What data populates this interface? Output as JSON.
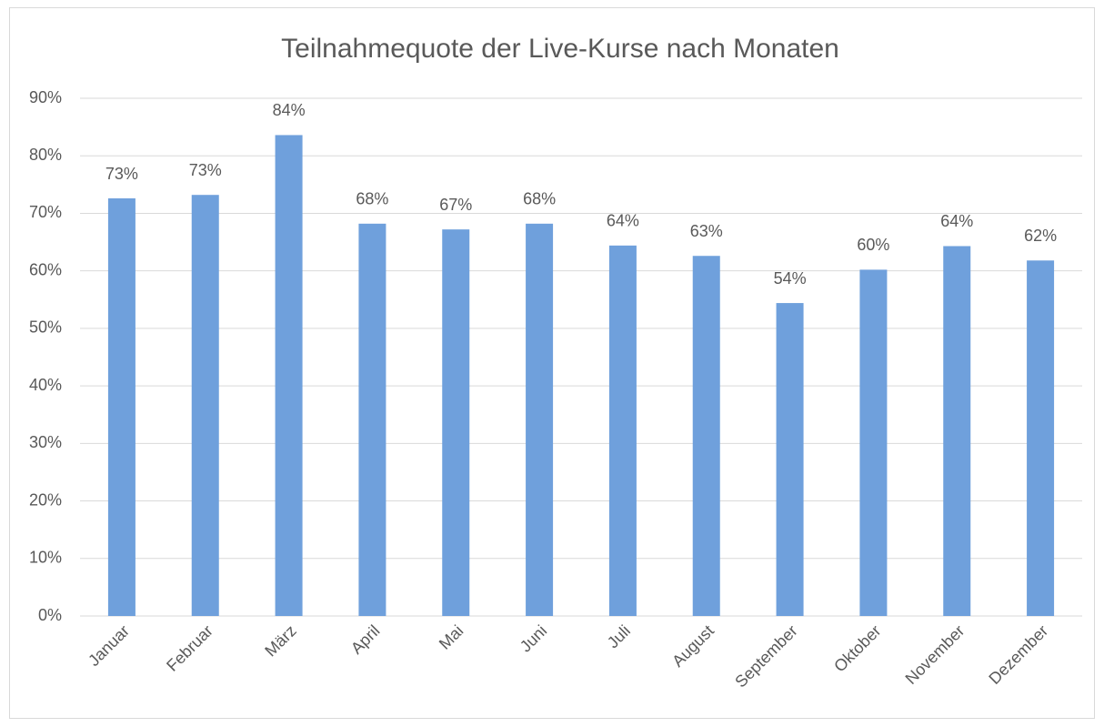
{
  "chart_data": {
    "type": "bar",
    "title": "Teilnahmequote der Live-Kurse nach Monaten",
    "categories": [
      "Januar",
      "Februar",
      "März",
      "April",
      "Mai",
      "Juni",
      "Juli",
      "August",
      "September",
      "Oktober",
      "November",
      "Dezember"
    ],
    "values": [
      72.6,
      73.2,
      83.6,
      68.2,
      67.2,
      68.2,
      64.4,
      62.6,
      54.4,
      60.2,
      64.3,
      61.8
    ],
    "value_labels": [
      "73%",
      "73%",
      "84%",
      "68%",
      "67%",
      "68%",
      "64%",
      "63%",
      "54%",
      "60%",
      "64%",
      "62%"
    ],
    "color": "#6fa0dc",
    "ylim": [
      0,
      90
    ],
    "yticks": [
      {
        "value": 0,
        "label": "0%"
      },
      {
        "value": 10,
        "label": "10%"
      },
      {
        "value": 20,
        "label": "20%"
      },
      {
        "value": 30,
        "label": "30%"
      },
      {
        "value": 40,
        "label": "40%"
      },
      {
        "value": 50,
        "label": "50%"
      },
      {
        "value": 60,
        "label": "60%"
      },
      {
        "value": 70,
        "label": "70%"
      },
      {
        "value": 80,
        "label": "80%"
      },
      {
        "value": 90,
        "label": "90%"
      }
    ],
    "grid": true
  }
}
